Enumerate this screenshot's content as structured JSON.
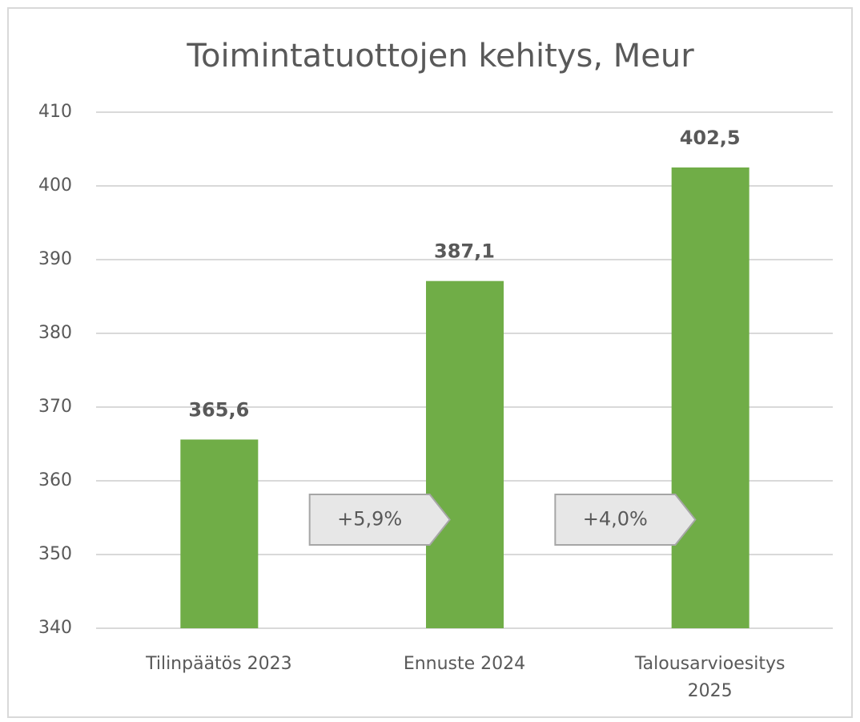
{
  "chart_data": {
    "type": "bar",
    "title": "Toimintatuottojen kehitys, Meur",
    "categories": [
      "Tilinpäätös 2023",
      "Ennuste 2024",
      "Talousarvioesitys 2025"
    ],
    "values": [
      365.6,
      387.1,
      402.5
    ],
    "value_labels": [
      "365,6",
      "387,1",
      "402,5"
    ],
    "color": "#70ad47",
    "ylim": [
      340,
      410
    ],
    "yticks": [
      340,
      350,
      360,
      370,
      380,
      390,
      400,
      410
    ],
    "grid": true,
    "annotations": [
      "+5,9%",
      "+4,0%"
    ]
  }
}
